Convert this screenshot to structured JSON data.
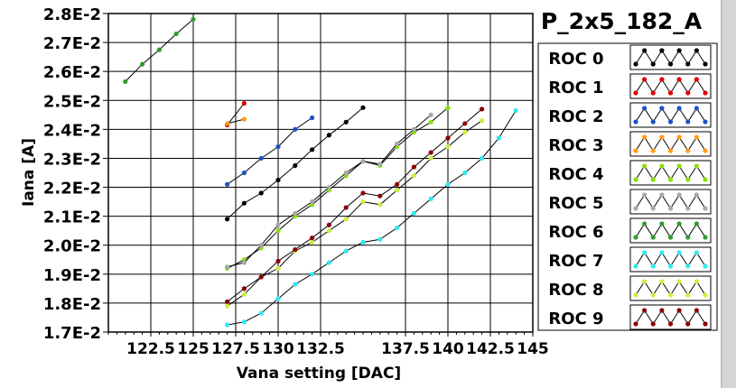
{
  "chart_data": {
    "type": "line",
    "title": "P_2x5_182_A",
    "xlabel": "Vana setting [DAC]",
    "ylabel": "Iana [A]",
    "xlim": [
      120,
      145
    ],
    "ylim": [
      0.017,
      0.028
    ],
    "x_ticks": [
      122.5,
      125,
      127.5,
      130,
      132.5,
      137.5,
      140,
      142.5,
      145
    ],
    "x_tick_labels": [
      "122.5",
      "125",
      "127.5",
      "130",
      "132.5",
      "137.5",
      "140",
      "142.5",
      "145"
    ],
    "y_ticks": [
      0.017,
      0.018,
      0.019,
      0.02,
      0.021,
      0.022,
      0.023,
      0.024,
      0.025,
      0.026,
      0.027,
      0.028
    ],
    "y_tick_labels": [
      "1.7E-2",
      "1.8E-2",
      "1.9E-2",
      "2.0E-2",
      "2.1E-2",
      "2.2E-2",
      "2.3E-2",
      "2.4E-2",
      "2.5E-2",
      "2.6E-2",
      "2.7E-2",
      "2.8E-2"
    ],
    "grid": true,
    "legend_position": "right",
    "series": [
      {
        "name": "ROC 0",
        "color": "#000000",
        "x": [
          127,
          128,
          129,
          130,
          131,
          132,
          133,
          134,
          135
        ],
        "y": [
          0.0209,
          0.02145,
          0.0218,
          0.02225,
          0.02275,
          0.0233,
          0.0238,
          0.02425,
          0.02475
        ]
      },
      {
        "name": "ROC 1",
        "color": "#e00000",
        "x": [
          127,
          128
        ],
        "y": [
          0.02415,
          0.0249
        ]
      },
      {
        "name": "ROC 2",
        "color": "#1f4fc8",
        "x": [
          127,
          128,
          129,
          130,
          131,
          132
        ],
        "y": [
          0.0221,
          0.0225,
          0.023,
          0.0234,
          0.024,
          0.0244
        ]
      },
      {
        "name": "ROC 3",
        "color": "#ff9c1a",
        "x": [
          127,
          128
        ],
        "y": [
          0.0242,
          0.02435
        ]
      },
      {
        "name": "ROC 4",
        "color": "#88e010",
        "x": [
          127,
          128,
          129,
          130,
          131,
          132,
          133,
          134,
          135,
          136,
          137,
          138,
          139,
          140
        ],
        "y": [
          0.0192,
          0.0195,
          0.0199,
          0.0205,
          0.021,
          0.0214,
          0.0219,
          0.0224,
          0.0229,
          0.02275,
          0.0234,
          0.0239,
          0.02425,
          0.02475
        ]
      },
      {
        "name": "ROC 5",
        "color": "#a8a8a8",
        "x": [
          127,
          128,
          129,
          130,
          131,
          132,
          133,
          134,
          135,
          136,
          137,
          138,
          139
        ],
        "y": [
          0.01925,
          0.0194,
          0.02,
          0.0207,
          0.0211,
          0.0215,
          0.022,
          0.0225,
          0.0229,
          0.0228,
          0.0235,
          0.024,
          0.0245
        ]
      },
      {
        "name": "ROC 6",
        "color": "#2e9c2e",
        "x": [
          121,
          122,
          123,
          124,
          125
        ],
        "y": [
          0.02565,
          0.02625,
          0.02675,
          0.0273,
          0.0278
        ]
      },
      {
        "name": "ROC 7",
        "color": "#30e8f0",
        "x": [
          127,
          128,
          129,
          130,
          131,
          132,
          133,
          134,
          135,
          136,
          137,
          138,
          139,
          140,
          141,
          142,
          143,
          144
        ],
        "y": [
          0.01725,
          0.01735,
          0.01765,
          0.01815,
          0.01865,
          0.019,
          0.0194,
          0.0198,
          0.0201,
          0.0202,
          0.0206,
          0.0211,
          0.0216,
          0.0221,
          0.0225,
          0.023,
          0.0237,
          0.02465
        ]
      },
      {
        "name": "ROC 8",
        "color": "#c8f040",
        "x": [
          127,
          128,
          129,
          130,
          131,
          132,
          133,
          134,
          135,
          136,
          137,
          138,
          139,
          140,
          141,
          142
        ],
        "y": [
          0.0179,
          0.0183,
          0.0189,
          0.0192,
          0.0198,
          0.0201,
          0.0205,
          0.0209,
          0.0215,
          0.0214,
          0.0219,
          0.0224,
          0.023,
          0.0234,
          0.0239,
          0.0243
        ]
      },
      {
        "name": "ROC 9",
        "color": "#8b0000",
        "x": [
          127,
          128,
          129,
          130,
          131,
          132,
          133,
          134,
          135,
          136,
          137,
          138,
          139,
          140,
          141,
          142
        ],
        "y": [
          0.01805,
          0.0185,
          0.0189,
          0.01945,
          0.01985,
          0.02025,
          0.0207,
          0.0213,
          0.0218,
          0.0217,
          0.0221,
          0.0227,
          0.0232,
          0.0237,
          0.0242,
          0.0247
        ]
      }
    ]
  }
}
